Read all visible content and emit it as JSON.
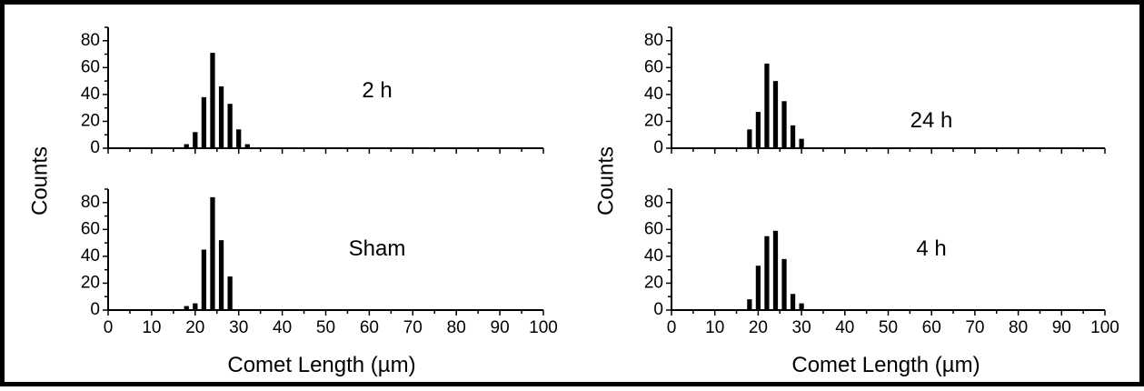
{
  "figure": {
    "ylabel": "Counts",
    "xlabel": "Comet Length (µm)"
  },
  "chart_data": [
    {
      "type": "bar",
      "label": "2 h",
      "xlim": [
        0,
        100
      ],
      "ylim": [
        0,
        90
      ],
      "x_ticks": [
        0,
        10,
        20,
        30,
        40,
        50,
        60,
        70,
        80,
        90,
        100
      ],
      "y_ticks": [
        0,
        20,
        40,
        60,
        80
      ],
      "x": [
        18,
        20,
        22,
        24,
        26,
        28,
        30,
        32
      ],
      "values": [
        3,
        12,
        38,
        71,
        46,
        33,
        14,
        3
      ]
    },
    {
      "type": "bar",
      "label": "Sham",
      "xlim": [
        0,
        100
      ],
      "ylim": [
        0,
        90
      ],
      "x_ticks": [
        0,
        10,
        20,
        30,
        40,
        50,
        60,
        70,
        80,
        90,
        100
      ],
      "y_ticks": [
        0,
        20,
        40,
        60,
        80
      ],
      "x": [
        18,
        20,
        22,
        24,
        26,
        28
      ],
      "values": [
        3,
        5,
        45,
        84,
        52,
        25
      ]
    },
    {
      "type": "bar",
      "label": "24 h",
      "xlim": [
        0,
        100
      ],
      "ylim": [
        0,
        90
      ],
      "x_ticks": [
        0,
        10,
        20,
        30,
        40,
        50,
        60,
        70,
        80,
        90,
        100
      ],
      "y_ticks": [
        0,
        20,
        40,
        60,
        80
      ],
      "x": [
        18,
        20,
        22,
        24,
        26,
        28,
        30
      ],
      "values": [
        14,
        27,
        63,
        50,
        35,
        17,
        7
      ]
    },
    {
      "type": "bar",
      "label": "4 h",
      "xlim": [
        0,
        100
      ],
      "ylim": [
        0,
        90
      ],
      "x_ticks": [
        0,
        10,
        20,
        30,
        40,
        50,
        60,
        70,
        80,
        90,
        100
      ],
      "y_ticks": [
        0,
        20,
        40,
        60,
        80
      ],
      "x": [
        18,
        20,
        22,
        24,
        26,
        28,
        30
      ],
      "values": [
        8,
        33,
        55,
        59,
        38,
        12,
        5
      ]
    }
  ]
}
